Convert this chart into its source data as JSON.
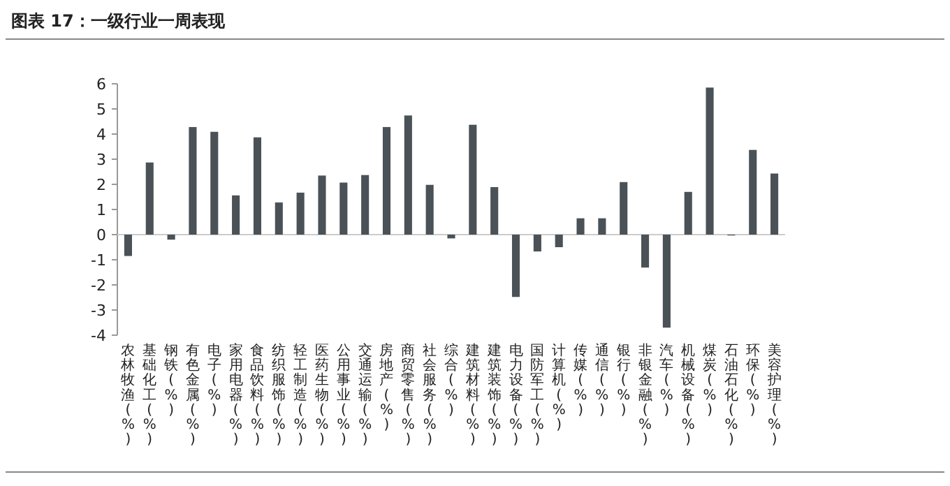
{
  "chart_data": {
    "type": "bar",
    "title": "图表 17：一级行业一周表现",
    "categories": [
      "农林牧渔(%)",
      "基础化工(%)",
      "钢铁(%)",
      "有色金属(%)",
      "电子(%)",
      "家用电器(%)",
      "食品饮料(%)",
      "纺织服饰(%)",
      "轻工制造(%)",
      "医药生物(%)",
      "公用事业(%)",
      "交通运输(%)",
      "房地产(%)",
      "商贸零售(%)",
      "社会服务(%)",
      "综合(%)",
      "建筑材料(%)",
      "建筑装饰(%)",
      "电力设备(%)",
      "国防军工(%)",
      "计算机(%)",
      "传媒(%)",
      "通信(%)",
      "银行(%)",
      "非银金融(%)",
      "汽车(%)",
      "机械设备(%)",
      "煤炭(%)",
      "石油石化(%)",
      "环保(%)",
      "美容护理(%)"
    ],
    "values": [
      -0.85,
      2.87,
      -0.2,
      4.28,
      4.09,
      1.56,
      3.87,
      1.28,
      1.67,
      2.35,
      2.07,
      2.37,
      4.28,
      4.74,
      1.98,
      -0.15,
      4.37,
      1.89,
      -2.48,
      -0.67,
      -0.5,
      0.65,
      0.65,
      2.09,
      -1.31,
      -3.7,
      1.7,
      5.85,
      -0.02,
      3.37,
      2.43
    ],
    "color": "#4a5257",
    "ylim": [
      -4,
      6
    ],
    "yticks": [
      -4,
      -3,
      -2,
      -1,
      0,
      1,
      2,
      3,
      4,
      5,
      6
    ]
  }
}
